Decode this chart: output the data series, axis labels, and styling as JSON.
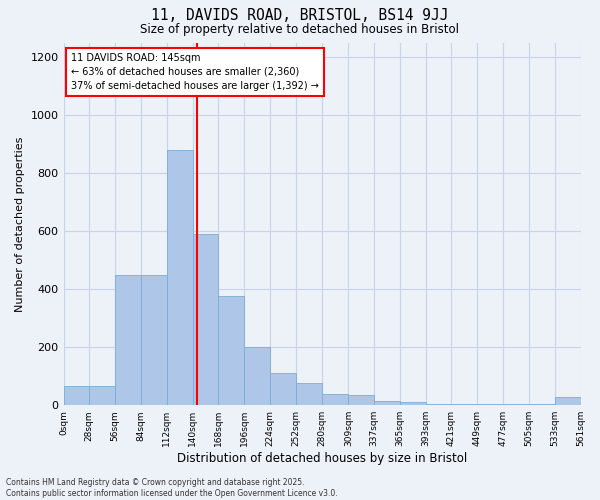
{
  "title1": "11, DAVIDS ROAD, BRISTOL, BS14 9JJ",
  "title2": "Size of property relative to detached houses in Bristol",
  "xlabel": "Distribution of detached houses by size in Bristol",
  "ylabel": "Number of detached properties",
  "annotation_title": "11 DAVIDS ROAD: 145sqm",
  "annotation_line1": "← 63% of detached houses are smaller (2,360)",
  "annotation_line2": "37% of semi-detached houses are larger (1,392) →",
  "footer1": "Contains HM Land Registry data © Crown copyright and database right 2025.",
  "footer2": "Contains public sector information licensed under the Open Government Licence v3.0.",
  "property_size": 145,
  "bin_edges": [
    0,
    28,
    56,
    84,
    112,
    140,
    168,
    196,
    224,
    252,
    280,
    309,
    337,
    365,
    393,
    421,
    449,
    477,
    505,
    533,
    561
  ],
  "bar_heights": [
    65,
    65,
    450,
    450,
    880,
    590,
    375,
    200,
    110,
    75,
    40,
    35,
    15,
    10,
    5,
    5,
    5,
    5,
    5,
    30
  ],
  "bar_color": "#aec6e8",
  "bar_edge_color": "#7aadd4",
  "vline_color": "red",
  "grid_color": "#c8d4e8",
  "background_color": "#edf1f8",
  "annotation_box_color": "#ffffff",
  "annotation_box_edge": "red",
  "ylim": [
    0,
    1250
  ],
  "yticks": [
    0,
    200,
    400,
    600,
    800,
    1000,
    1200
  ]
}
